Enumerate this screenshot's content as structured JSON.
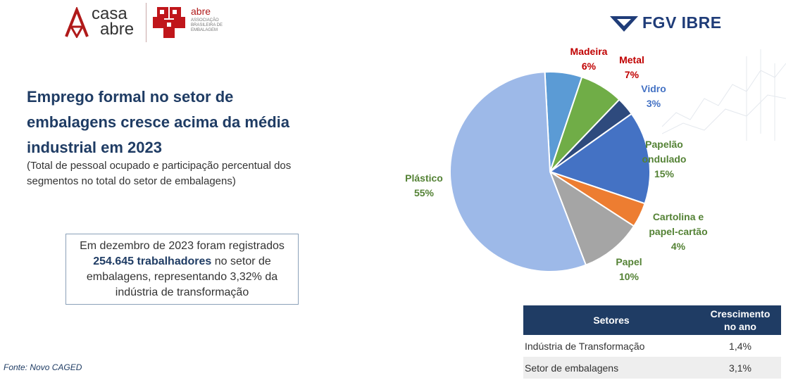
{
  "logos": {
    "casa_line1": "casa",
    "casa_line2": "abre",
    "abre_name": "abre",
    "abre_sub": "ASSOCIAÇÃO BRASILEIRA DE EMBALAGEM",
    "fgv": "FGV IBRE"
  },
  "headline": "Emprego formal no setor de embalagens cresce acima da média industrial em 2023",
  "subtitle": "(Total de pessoal ocupado e participação percentual dos segmentos no total do setor de embalagens)",
  "callout": {
    "pre": "Em dezembro de 2023 foram registrados ",
    "bold": "254.645 trabalhadores",
    "post": " no setor de embalagens, representando 3,32% da indústria de transformação"
  },
  "source": "Fonte: Novo CAGED",
  "chart_data": {
    "type": "pie",
    "title": "",
    "slices": [
      {
        "label": "Madeira",
        "value": 6,
        "value_label": "6%",
        "color": "#5b9bd5",
        "label_color": "#c00000"
      },
      {
        "label": "Metal",
        "value": 7,
        "value_label": "7%",
        "color": "#70ad47",
        "label_color": "#c00000"
      },
      {
        "label": "Vidro",
        "value": 3,
        "value_label": "3%",
        "color": "#2e4a7d",
        "label_color": "#4472c4"
      },
      {
        "label": "Papelão ondulado",
        "value": 15,
        "value_label": "15%",
        "color": "#4472c4",
        "label_color": "#548235"
      },
      {
        "label": "Cartolina e papel-cartão",
        "value": 4,
        "value_label": "4%",
        "color": "#ed7d31",
        "label_color": "#548235"
      },
      {
        "label": "Papel",
        "value": 10,
        "value_label": "10%",
        "color": "#a5a5a5",
        "label_color": "#548235"
      },
      {
        "label": "Plástico",
        "value": 55,
        "value_label": "55%",
        "color": "#9db9e8",
        "label_color": "#548235"
      }
    ]
  },
  "table": {
    "headers": [
      "Setores",
      "Crescimento no ano"
    ],
    "rows": [
      {
        "sector": "Indústria de Transformação",
        "growth": "1,4%"
      },
      {
        "sector": "Setor de embalagens",
        "growth": "3,1%"
      }
    ]
  }
}
